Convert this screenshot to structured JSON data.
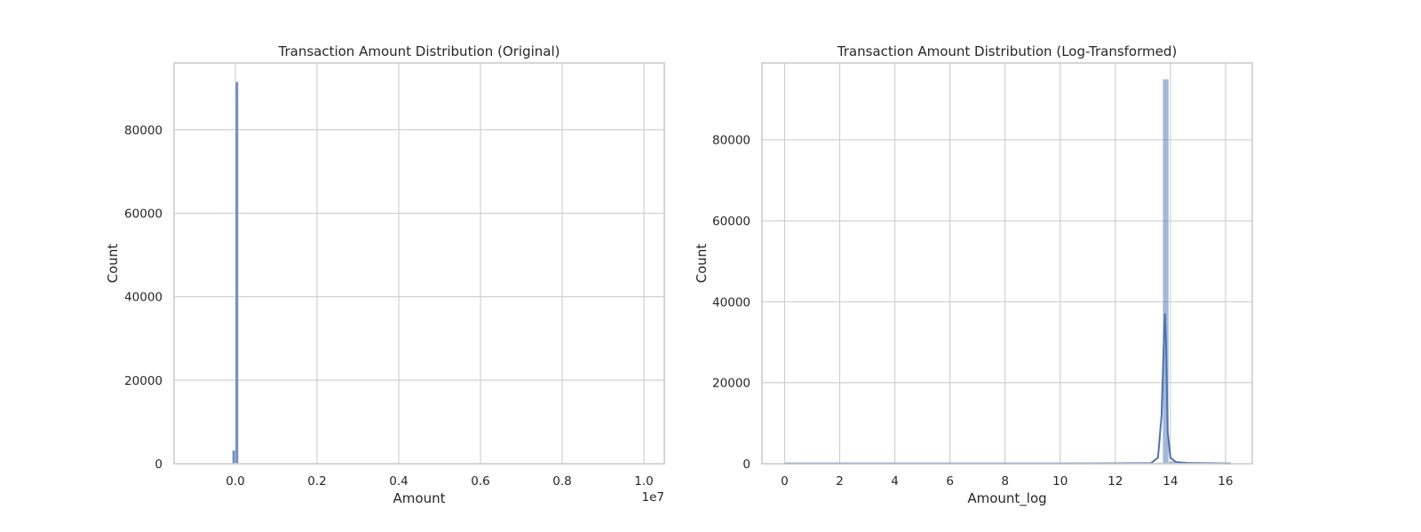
{
  "chart_data": [
    {
      "type": "bar",
      "title": "Transaction Amount Distribution (Original)",
      "xlabel": "Amount",
      "ylabel": "Count",
      "x_offset_label": "1e7",
      "xlim": [
        -1500000,
        10500000
      ],
      "ylim": [
        0,
        96000
      ],
      "x_ticks": [
        0.0,
        0.2,
        0.4,
        0.6,
        0.8,
        1.0
      ],
      "x_tick_labels": [
        "0.0",
        "0.2",
        "0.4",
        "0.6",
        "0.8",
        "1.0"
      ],
      "y_ticks": [
        0,
        20000,
        40000,
        60000,
        80000
      ],
      "y_tick_labels": [
        "0",
        "20000",
        "40000",
        "60000",
        "80000"
      ],
      "grid": true,
      "bar_color": "#4c72b0",
      "bar_opacity": 0.8,
      "bars": [
        {
          "x0": -75000,
          "x1": 0,
          "count": 3200
        },
        {
          "x0": 0,
          "x1": 75000,
          "count": 91500
        },
        {
          "x0": 75000,
          "x1": 150000,
          "count": 80
        }
      ]
    },
    {
      "type": "bar",
      "title": "Transaction Amount Distribution (Log-Transformed)",
      "xlabel": "Amount_log",
      "ylabel": "Count",
      "xlim": [
        -0.82,
        16.97
      ],
      "ylim": [
        0,
        99000
      ],
      "x_ticks": [
        0,
        2,
        4,
        6,
        8,
        10,
        12,
        14,
        16
      ],
      "x_tick_labels": [
        "0",
        "2",
        "4",
        "6",
        "8",
        "10",
        "12",
        "14",
        "16"
      ],
      "y_ticks": [
        0,
        20000,
        40000,
        60000,
        80000
      ],
      "y_tick_labels": [
        "0",
        "20000",
        "40000",
        "60000",
        "80000"
      ],
      "grid": true,
      "bar_color": "#4c72b0",
      "bar_opacity": 0.5,
      "line_color": "#4c72b0",
      "bars": [
        {
          "x0": 13.5,
          "x1": 13.72,
          "count": 300
        },
        {
          "x0": 13.72,
          "x1": 13.94,
          "count": 95000
        },
        {
          "x0": 13.94,
          "x1": 14.16,
          "count": 600
        },
        {
          "x0": 14.16,
          "x1": 14.38,
          "count": 150
        }
      ],
      "kde": [
        [
          0,
          50
        ],
        [
          2,
          50
        ],
        [
          4,
          50
        ],
        [
          6,
          50
        ],
        [
          8,
          50
        ],
        [
          10,
          50
        ],
        [
          12,
          80
        ],
        [
          13.3,
          150
        ],
        [
          13.55,
          1500
        ],
        [
          13.68,
          12000
        ],
        [
          13.76,
          30000
        ],
        [
          13.8,
          37000
        ],
        [
          13.84,
          30000
        ],
        [
          13.9,
          8000
        ],
        [
          14.0,
          1500
        ],
        [
          14.2,
          400
        ],
        [
          14.6,
          200
        ],
        [
          15.5,
          100
        ],
        [
          16.2,
          50
        ]
      ]
    }
  ]
}
